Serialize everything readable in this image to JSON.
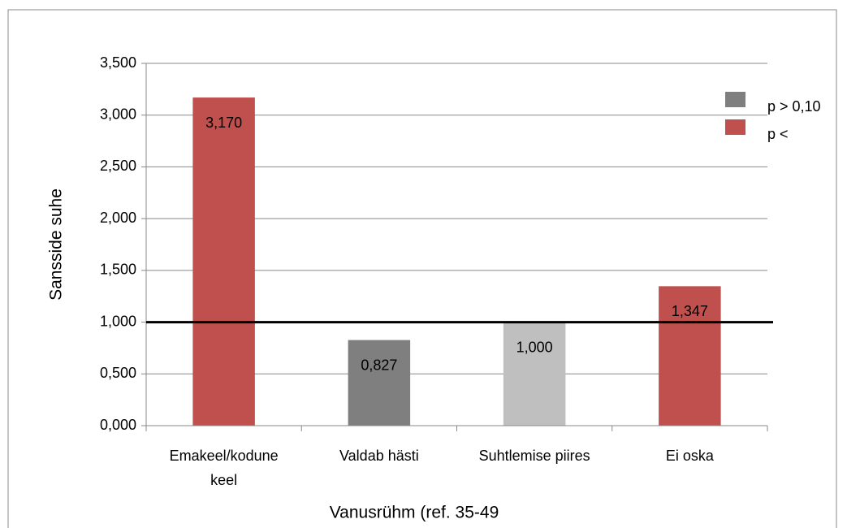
{
  "chart_data": {
    "type": "bar",
    "categories": [
      "Emakeel/kodune keel",
      "Valdab hästi",
      "Suhtlemise piires",
      "Ei oska"
    ],
    "values": [
      3.17,
      0.827,
      1.0,
      1.347
    ],
    "value_labels": [
      "3,170",
      "0,827",
      "1,000",
      "1,347"
    ],
    "colors": [
      "#c0504d",
      "#7f7f7f",
      "#bfbfbf",
      "#c0504d"
    ],
    "ylim": [
      0,
      3.5
    ],
    "yticks": [
      {
        "value": 0,
        "label": "0,000"
      },
      {
        "value": 0.5,
        "label": "0,500"
      },
      {
        "value": 1,
        "label": "1,000"
      },
      {
        "value": 1.5,
        "label": "1,500"
      },
      {
        "value": 2,
        "label": "2,000"
      },
      {
        "value": 2.5,
        "label": "2,500"
      },
      {
        "value": 3,
        "label": "3,000"
      },
      {
        "value": 3.5,
        "label": "3,500"
      }
    ],
    "reference_line": 1,
    "ylabel": "Sansside suhe",
    "xlabel": "Vanusrühm (ref. 35-49",
    "grid": true,
    "legend": {
      "position": "right",
      "items": [
        {
          "name": "p > 0,10",
          "color": "#7f7f7f"
        },
        {
          "name": "p <",
          "color": "#c0504d"
        }
      ]
    }
  }
}
